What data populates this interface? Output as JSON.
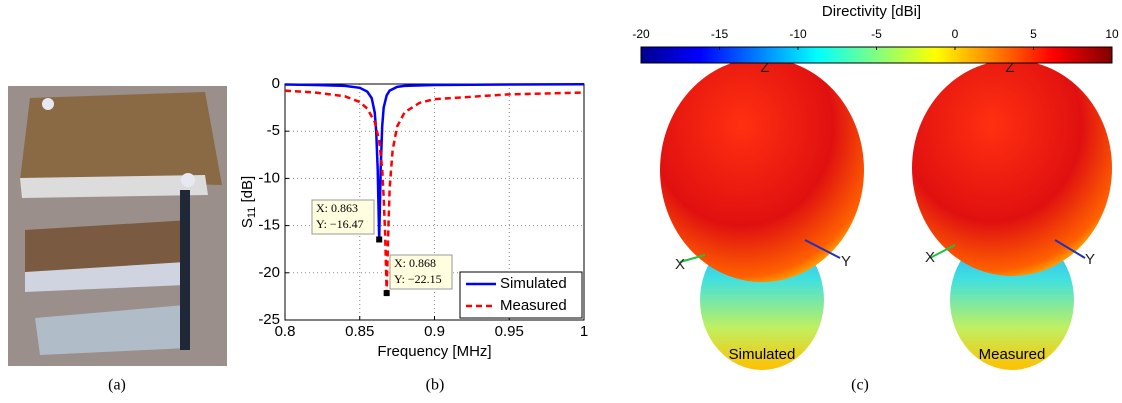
{
  "chart_data": [
    {
      "type": "line",
      "xlabel": "Frequency [MHz]",
      "ylabel": [
        "S",
        "11",
        " [dB]"
      ],
      "xlim": [
        0.8,
        1
      ],
      "xticks": [
        0.8,
        0.85,
        0.9,
        0.95,
        1
      ],
      "ylim": [
        -25,
        0
      ],
      "yticks": [
        -25,
        -20,
        -15,
        -10,
        -5,
        0
      ],
      "grid": true,
      "legend": "lower right",
      "series": [
        {
          "name": "Simulated",
          "color": "#0000ff",
          "dash": "solid",
          "x": [
            0.8,
            0.82,
            0.84,
            0.85,
            0.855,
            0.858,
            0.86,
            0.861,
            0.862,
            0.863,
            0.864,
            0.865,
            0.866,
            0.868,
            0.87,
            0.875,
            0.88,
            0.9,
            0.95,
            1
          ],
          "values": [
            -0.05,
            -0.1,
            -0.2,
            -0.4,
            -0.8,
            -1.5,
            -3,
            -5,
            -9,
            -16.47,
            -9,
            -4.5,
            -2.5,
            -1.2,
            -0.7,
            -0.3,
            -0.2,
            -0.1,
            -0.05,
            -0.03
          ]
        },
        {
          "name": "Measured",
          "color": "#ff0000",
          "dash": "dashed",
          "x": [
            0.8,
            0.82,
            0.84,
            0.85,
            0.855,
            0.86,
            0.863,
            0.865,
            0.866,
            0.867,
            0.868,
            0.869,
            0.87,
            0.872,
            0.875,
            0.88,
            0.89,
            0.9,
            0.95,
            1
          ],
          "values": [
            -0.7,
            -0.9,
            -1.3,
            -1.9,
            -2.6,
            -4,
            -6,
            -9,
            -12,
            -16,
            -22.15,
            -16,
            -11,
            -7,
            -4.5,
            -3,
            -2,
            -1.6,
            -1.1,
            -0.9
          ]
        }
      ],
      "annotations": [
        {
          "x": 0.863,
          "y": -16.47,
          "lines": [
            "X: 0.863",
            "Y: −16.47"
          ]
        },
        {
          "x": 0.868,
          "y": -22.15,
          "lines": [
            "X: 0.868",
            "Y: −22.15"
          ]
        }
      ]
    },
    {
      "type": "colorbar",
      "title": "Directivity [dBi]",
      "xlim": [
        -20,
        10
      ],
      "xticks": [
        -20,
        -15,
        -10,
        -5,
        0,
        5,
        10
      ],
      "colors": [
        "#00008f",
        "#0000ff",
        "#0080ff",
        "#00ffff",
        "#80ff80",
        "#ffff00",
        "#ff8000",
        "#ff0000",
        "#800000"
      ]
    }
  ],
  "figure": {
    "panels": [
      "(a)",
      "(b)",
      "(c)"
    ],
    "patterns": [
      "Simulated",
      "Measured"
    ],
    "axes": [
      "X",
      "Y",
      "Z"
    ]
  }
}
